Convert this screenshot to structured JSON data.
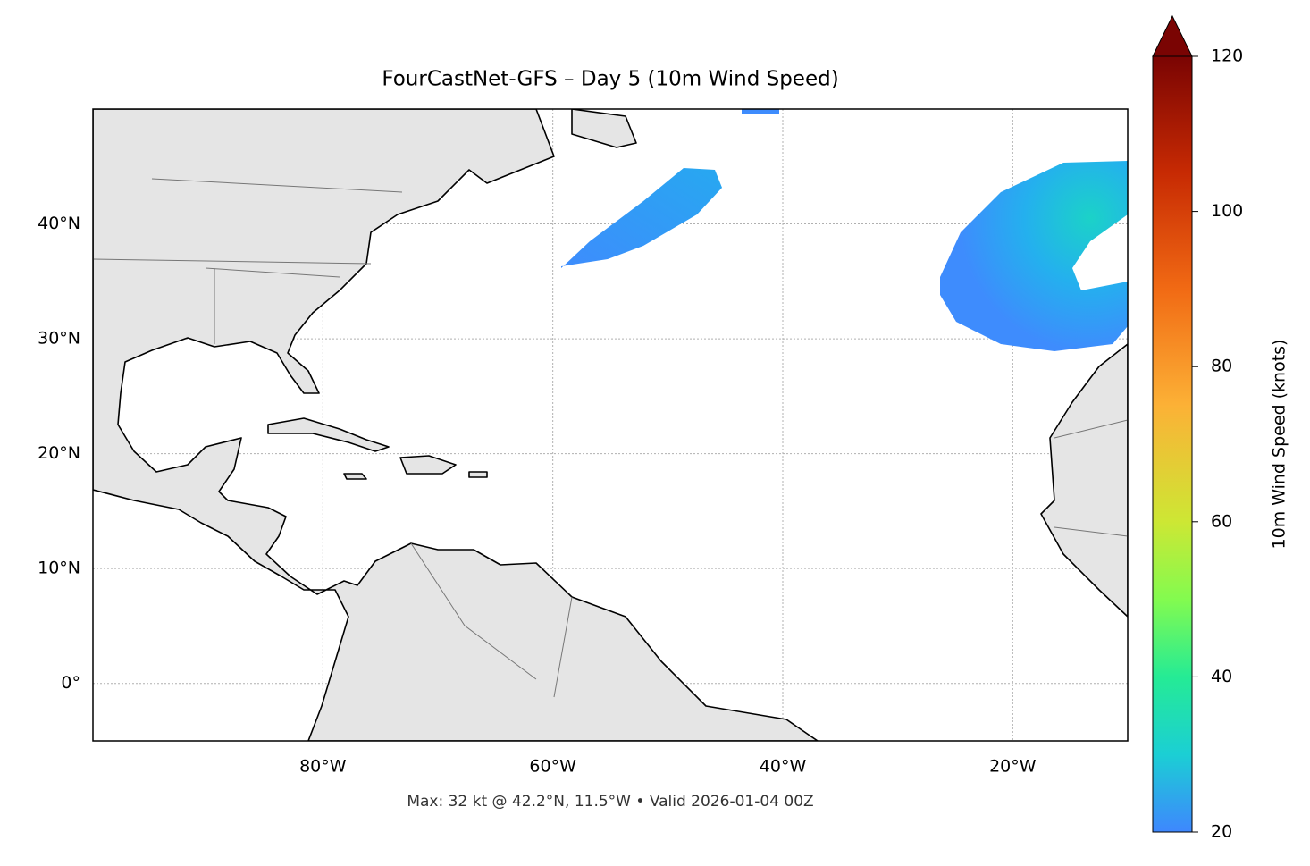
{
  "chart_data": {
    "type": "map",
    "title": "FourCastNet-GFS – Day 5 (10m Wind Speed)",
    "subtitle": "Max: 32 kt @ 42.2°N, 11.5°W • Valid 2026-01-04 00Z",
    "xlim": [
      -100,
      -10
    ],
    "ylim": [
      -5,
      50
    ],
    "xticks": [
      {
        "value": -80,
        "label": "80°W"
      },
      {
        "value": -60,
        "label": "60°W"
      },
      {
        "value": -40,
        "label": "40°W"
      },
      {
        "value": -20,
        "label": "20°W"
      }
    ],
    "yticks": [
      {
        "value": 0,
        "label": "0°"
      },
      {
        "value": 10,
        "label": "10°N"
      },
      {
        "value": 20,
        "label": "20°N"
      },
      {
        "value": 30,
        "label": "30°N"
      },
      {
        "value": 40,
        "label": "40°N"
      }
    ],
    "grid": true,
    "colorbar": {
      "label": "10m Wind Speed (knots)",
      "lim": [
        20,
        120
      ],
      "ticks": [
        20,
        40,
        60,
        80,
        100,
        120
      ]
    }
  }
}
